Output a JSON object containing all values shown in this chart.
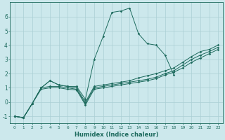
{
  "xlabel": "Humidex (Indice chaleur)",
  "background_color": "#cce8ec",
  "grid_color": "#aacfd4",
  "line_color": "#1e6b5e",
  "xlim": [
    -0.5,
    23.5
  ],
  "ylim": [
    -1.5,
    7.0
  ],
  "yticks": [
    -1,
    0,
    1,
    2,
    3,
    4,
    5,
    6
  ],
  "xticks": [
    0,
    1,
    2,
    3,
    4,
    5,
    6,
    7,
    8,
    9,
    10,
    11,
    12,
    13,
    14,
    15,
    16,
    17,
    18,
    19,
    20,
    21,
    22,
    23
  ],
  "series": [
    {
      "x": [
        0,
        1,
        2,
        3,
        4,
        5,
        6,
        7,
        8,
        9,
        10,
        11,
        12,
        13,
        14,
        15,
        16,
        17,
        18
      ],
      "y": [
        -1.0,
        -1.1,
        -0.1,
        1.0,
        1.5,
        1.2,
        1.1,
        1.1,
        0.2,
        3.0,
        4.6,
        6.3,
        6.4,
        6.6,
        4.8,
        4.1,
        4.0,
        3.3,
        1.9
      ]
    },
    {
      "x": [
        0,
        1,
        2,
        3,
        4,
        5,
        6,
        7,
        8,
        9,
        10,
        11,
        12,
        13,
        14,
        15,
        16,
        17,
        18,
        19,
        20,
        21,
        22,
        23
      ],
      "y": [
        -1.0,
        -1.1,
        -0.1,
        1.0,
        1.5,
        1.2,
        1.1,
        1.0,
        0.0,
        1.1,
        1.2,
        1.3,
        1.4,
        1.5,
        1.7,
        1.85,
        2.0,
        2.2,
        2.4,
        2.8,
        3.2,
        3.55,
        3.7,
        4.0
      ]
    },
    {
      "x": [
        0,
        1,
        2,
        3,
        4,
        5,
        6,
        7,
        8,
        9,
        10,
        11,
        12,
        13,
        14,
        15,
        16,
        17,
        18,
        19,
        20,
        21,
        22,
        23
      ],
      "y": [
        -1.0,
        -1.1,
        -0.1,
        1.0,
        1.1,
        1.1,
        1.0,
        0.9,
        -0.1,
        1.0,
        1.1,
        1.2,
        1.3,
        1.4,
        1.5,
        1.6,
        1.75,
        2.0,
        2.2,
        2.6,
        3.0,
        3.3,
        3.55,
        3.85
      ]
    },
    {
      "x": [
        0,
        1,
        2,
        3,
        4,
        5,
        6,
        7,
        8,
        9,
        10,
        11,
        12,
        13,
        14,
        15,
        16,
        17,
        18,
        19,
        20,
        21,
        22,
        23
      ],
      "y": [
        -1.0,
        -1.1,
        -0.1,
        0.9,
        1.0,
        1.0,
        0.9,
        0.85,
        -0.2,
        0.9,
        1.0,
        1.1,
        1.2,
        1.3,
        1.4,
        1.5,
        1.65,
        1.9,
        2.1,
        2.4,
        2.8,
        3.1,
        3.4,
        3.7
      ]
    }
  ]
}
